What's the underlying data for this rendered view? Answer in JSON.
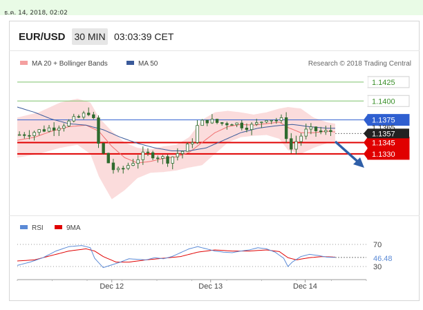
{
  "datetime": "ธ.ค. 14, 2018, 02:02",
  "header": {
    "symbol": "EUR/USD",
    "timeframe": "30 MIN",
    "time": "03:03:39 CET"
  },
  "legend": {
    "ma20_label": "MA 20 + Bollinger Bands",
    "ma50_label": "MA 50",
    "credit": "Research © 2018 Trading Central",
    "rsi_label": "RSI",
    "rsi_ma_label": "9MA"
  },
  "colors": {
    "bollinger_fill": "#f9d0d0",
    "ma20": "#f07070",
    "ma50": "#3a5a9a",
    "candle": "#2e6b2e",
    "green_level": "#7cc26a",
    "blue_level": "#2f5fd0",
    "red_level": "#e00000",
    "price_tag": "#222222",
    "arrow": "#2f5fa8",
    "rsi": "#5b8ad6",
    "rsi_ma": "#e00000"
  },
  "chart_data": {
    "type": "candlestick",
    "symbol": "EUR/USD",
    "interval": "30 MIN",
    "x_ticks": [
      "Dec 12",
      "Dec 13",
      "Dec 14"
    ],
    "ylim": [
      1.1255,
      1.1445
    ],
    "current_price": "1.1357",
    "levels": [
      {
        "label": "1.1425",
        "value": 1.1425,
        "kind": "resistance",
        "color": "#7cc26a"
      },
      {
        "label": "1.1400",
        "value": 1.14,
        "kind": "resistance",
        "color": "#7cc26a"
      },
      {
        "label": "1.1375",
        "value": 1.1375,
        "kind": "resistance",
        "color": "#2f5fd0"
      },
      {
        "label": "1.1365",
        "value": 1.1365,
        "kind": "marker",
        "color": "#ffffff"
      },
      {
        "label": "1.1345",
        "value": 1.1345,
        "kind": "support",
        "color": "#e00000"
      },
      {
        "label": "1.1330",
        "value": 1.133,
        "kind": "support",
        "color": "#e00000"
      }
    ],
    "close_path": [
      [
        0,
        1.1355
      ],
      [
        3,
        1.1358
      ],
      [
        6,
        1.1362
      ],
      [
        9,
        1.1366
      ],
      [
        12,
        1.1372
      ],
      [
        15,
        1.138
      ],
      [
        17,
        1.1387
      ],
      [
        18,
        1.137
      ],
      [
        19,
        1.134
      ],
      [
        21,
        1.132
      ],
      [
        23,
        1.1305
      ],
      [
        25,
        1.1312
      ],
      [
        27,
        1.132
      ],
      [
        29,
        1.1328
      ],
      [
        31,
        1.133
      ],
      [
        33,
        1.1326
      ],
      [
        35,
        1.1322
      ],
      [
        37,
        1.133
      ],
      [
        39,
        1.1335
      ],
      [
        41,
        1.135
      ],
      [
        42,
        1.1368
      ],
      [
        44,
        1.1375
      ],
      [
        46,
        1.1372
      ],
      [
        48,
        1.137
      ],
      [
        50,
        1.1372
      ],
      [
        52,
        1.1368
      ],
      [
        54,
        1.1366
      ],
      [
        56,
        1.137
      ],
      [
        58,
        1.1378
      ],
      [
        60,
        1.1375
      ],
      [
        62,
        1.1374
      ],
      [
        63,
        1.134
      ],
      [
        64,
        1.1335
      ],
      [
        65,
        1.1348
      ],
      [
        67,
        1.136
      ],
      [
        69,
        1.1362
      ],
      [
        71,
        1.1358
      ],
      [
        73,
        1.136
      ],
      [
        74,
        1.1357
      ]
    ],
    "ma20_path": [
      [
        0,
        1.1348
      ],
      [
        4,
        1.1352
      ],
      [
        8,
        1.136
      ],
      [
        12,
        1.1366
      ],
      [
        16,
        1.1368
      ],
      [
        19,
        1.136
      ],
      [
        22,
        1.134
      ],
      [
        25,
        1.1325
      ],
      [
        28,
        1.1318
      ],
      [
        31,
        1.132
      ],
      [
        34,
        1.1324
      ],
      [
        37,
        1.1326
      ],
      [
        40,
        1.1332
      ],
      [
        43,
        1.1345
      ],
      [
        46,
        1.1358
      ],
      [
        49,
        1.1366
      ],
      [
        52,
        1.1369
      ],
      [
        55,
        1.1368
      ],
      [
        58,
        1.137
      ],
      [
        61,
        1.1372
      ],
      [
        63,
        1.1365
      ],
      [
        66,
        1.1358
      ],
      [
        69,
        1.1358
      ],
      [
        72,
        1.136
      ],
      [
        74,
        1.1359
      ]
    ],
    "ma50_path": [
      [
        0,
        1.1392
      ],
      [
        4,
        1.1385
      ],
      [
        8,
        1.1376
      ],
      [
        12,
        1.137
      ],
      [
        16,
        1.1368
      ],
      [
        20,
        1.1362
      ],
      [
        24,
        1.1352
      ],
      [
        28,
        1.1344
      ],
      [
        32,
        1.1338
      ],
      [
        36,
        1.1334
      ],
      [
        40,
        1.1334
      ],
      [
        44,
        1.1338
      ],
      [
        48,
        1.1348
      ],
      [
        52,
        1.1358
      ],
      [
        56,
        1.1364
      ],
      [
        60,
        1.1367
      ],
      [
        64,
        1.1369
      ],
      [
        68,
        1.1366
      ],
      [
        72,
        1.1364
      ],
      [
        74,
        1.1364
      ]
    ],
    "bb_upper": [
      [
        0,
        1.1378
      ],
      [
        5,
        1.1385
      ],
      [
        10,
        1.1398
      ],
      [
        14,
        1.1403
      ],
      [
        17,
        1.1398
      ],
      [
        19,
        1.1378
      ],
      [
        22,
        1.136
      ],
      [
        25,
        1.1345
      ],
      [
        28,
        1.1338
      ],
      [
        31,
        1.1336
      ],
      [
        34,
        1.134
      ],
      [
        37,
        1.1342
      ],
      [
        40,
        1.1352
      ],
      [
        43,
        1.1375
      ],
      [
        46,
        1.1385
      ],
      [
        49,
        1.1387
      ],
      [
        52,
        1.1385
      ],
      [
        55,
        1.1382
      ],
      [
        58,
        1.1385
      ],
      [
        61,
        1.139
      ],
      [
        63,
        1.1392
      ],
      [
        66,
        1.139
      ],
      [
        69,
        1.1378
      ],
      [
        72,
        1.1372
      ],
      [
        74,
        1.137
      ]
    ],
    "bb_lower": [
      [
        0,
        1.1325
      ],
      [
        5,
        1.133
      ],
      [
        10,
        1.1338
      ],
      [
        14,
        1.1342
      ],
      [
        17,
        1.133
      ],
      [
        19,
        1.13
      ],
      [
        22,
        1.127
      ],
      [
        25,
        1.1282
      ],
      [
        28,
        1.1298
      ],
      [
        31,
        1.1305
      ],
      [
        34,
        1.1306
      ],
      [
        37,
        1.1308
      ],
      [
        40,
        1.1312
      ],
      [
        43,
        1.1315
      ],
      [
        46,
        1.133
      ],
      [
        49,
        1.1345
      ],
      [
        52,
        1.1352
      ],
      [
        55,
        1.1354
      ],
      [
        58,
        1.1355
      ],
      [
        61,
        1.135
      ],
      [
        63,
        1.1335
      ],
      [
        66,
        1.133
      ],
      [
        69,
        1.1338
      ],
      [
        72,
        1.1344
      ],
      [
        74,
        1.1346
      ]
    ],
    "rsi": {
      "ylim": [
        10,
        90
      ],
      "levels": [
        70,
        30
      ],
      "level_labels": [
        "70",
        "30"
      ],
      "current": "46.48",
      "rsi_path": [
        [
          0,
          32
        ],
        [
          3,
          38
        ],
        [
          6,
          46
        ],
        [
          9,
          58
        ],
        [
          12,
          66
        ],
        [
          15,
          68
        ],
        [
          17,
          64
        ],
        [
          18,
          45
        ],
        [
          20,
          28
        ],
        [
          22,
          33
        ],
        [
          24,
          38
        ],
        [
          26,
          44
        ],
        [
          28,
          43
        ],
        [
          30,
          42
        ],
        [
          32,
          46
        ],
        [
          34,
          44
        ],
        [
          36,
          48
        ],
        [
          38,
          55
        ],
        [
          40,
          62
        ],
        [
          42,
          66
        ],
        [
          44,
          62
        ],
        [
          46,
          58
        ],
        [
          48,
          56
        ],
        [
          50,
          55
        ],
        [
          52,
          58
        ],
        [
          54,
          60
        ],
        [
          56,
          64
        ],
        [
          58,
          62
        ],
        [
          60,
          56
        ],
        [
          62,
          45
        ],
        [
          63,
          30
        ],
        [
          64,
          38
        ],
        [
          66,
          48
        ],
        [
          68,
          52
        ],
        [
          70,
          50
        ],
        [
          72,
          47
        ],
        [
          74,
          46.5
        ]
      ],
      "ma_path": [
        [
          0,
          40
        ],
        [
          4,
          42
        ],
        [
          8,
          50
        ],
        [
          12,
          58
        ],
        [
          16,
          62
        ],
        [
          18,
          58
        ],
        [
          20,
          48
        ],
        [
          23,
          38
        ],
        [
          26,
          38
        ],
        [
          30,
          42
        ],
        [
          34,
          45
        ],
        [
          38,
          48
        ],
        [
          42,
          56
        ],
        [
          46,
          60
        ],
        [
          50,
          58
        ],
        [
          54,
          58
        ],
        [
          58,
          60
        ],
        [
          61,
          57
        ],
        [
          63,
          46
        ],
        [
          65,
          42
        ],
        [
          68,
          46
        ],
        [
          71,
          48
        ],
        [
          74,
          47
        ]
      ]
    }
  }
}
